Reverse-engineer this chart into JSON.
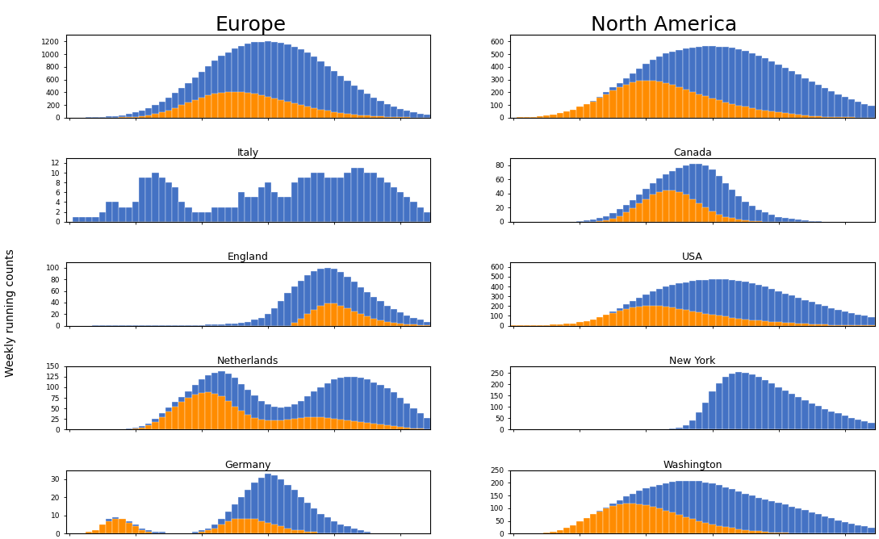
{
  "title_left": "Europe",
  "title_right": "North America",
  "ylabel": "Weekly running counts",
  "blue_color": "#4472C4",
  "orange_color": "#FF8C00",
  "panels": {
    "europe_total": {
      "title": "",
      "n_bars": 55,
      "blue": [
        2,
        3,
        4,
        6,
        8,
        12,
        18,
        28,
        42,
        60,
        85,
        115,
        155,
        200,
        255,
        320,
        390,
        465,
        545,
        630,
        720,
        810,
        895,
        970,
        1030,
        1085,
        1130,
        1165,
        1185,
        1195,
        1200,
        1195,
        1180,
        1155,
        1120,
        1075,
        1020,
        960,
        890,
        815,
        740,
        660,
        585,
        510,
        440,
        375,
        315,
        262,
        215,
        172,
        138,
        108,
        84,
        65,
        50
      ],
      "orange": [
        0,
        0,
        0,
        0,
        0,
        1,
        2,
        4,
        6,
        10,
        16,
        25,
        38,
        58,
        82,
        115,
        155,
        198,
        240,
        282,
        318,
        350,
        375,
        390,
        398,
        400,
        398,
        390,
        375,
        355,
        330,
        305,
        278,
        250,
        222,
        195,
        170,
        147,
        126,
        107,
        90,
        75,
        62,
        50,
        40,
        32,
        25,
        19,
        14,
        11,
        8,
        6,
        4,
        3,
        2
      ],
      "ylim": [
        0,
        1300
      ],
      "ytick_step": 200
    },
    "italy": {
      "title": "Italy",
      "n_bars": 55,
      "blue": [
        0,
        1,
        1,
        1,
        1,
        2,
        4,
        4,
        3,
        3,
        4,
        9,
        9,
        10,
        9,
        8,
        7,
        4,
        3,
        2,
        2,
        2,
        3,
        3,
        3,
        3,
        6,
        5,
        5,
        7,
        8,
        6,
        5,
        5,
        8,
        9,
        9,
        10,
        10,
        9,
        9,
        9,
        10,
        11,
        11,
        10,
        10,
        9,
        8,
        7,
        6,
        5,
        4,
        3,
        2
      ],
      "orange": [
        0,
        0,
        0,
        0,
        0,
        0,
        0,
        0,
        0,
        0,
        0,
        0,
        0,
        0,
        0,
        0,
        0,
        0,
        0,
        0,
        0,
        0,
        0,
        0,
        0,
        0,
        0,
        0,
        0,
        0,
        0,
        0,
        0,
        0,
        0,
        0,
        0,
        0,
        0,
        0,
        0,
        0,
        0,
        0,
        0,
        0,
        0,
        0,
        0,
        0,
        0,
        0,
        0,
        0,
        0
      ],
      "ylim": [
        0,
        13
      ],
      "ytick_step": 2
    },
    "england": {
      "title": "England",
      "n_bars": 55,
      "blue": [
        0,
        0,
        0,
        0,
        1,
        1,
        1,
        1,
        1,
        1,
        1,
        1,
        1,
        1,
        1,
        1,
        1,
        1,
        1,
        1,
        1,
        2,
        2,
        2,
        3,
        4,
        5,
        7,
        10,
        14,
        20,
        30,
        42,
        56,
        68,
        78,
        87,
        94,
        98,
        100,
        98,
        93,
        85,
        76,
        67,
        58,
        50,
        42,
        35,
        29,
        23,
        18,
        14,
        10,
        7
      ],
      "orange": [
        0,
        0,
        0,
        0,
        0,
        0,
        0,
        0,
        0,
        0,
        0,
        0,
        0,
        0,
        0,
        0,
        0,
        0,
        0,
        0,
        0,
        0,
        0,
        0,
        0,
        0,
        0,
        0,
        0,
        0,
        0,
        0,
        0,
        0,
        5,
        12,
        20,
        28,
        34,
        38,
        38,
        35,
        30,
        25,
        20,
        16,
        12,
        9,
        7,
        5,
        3,
        2,
        2,
        1,
        1
      ],
      "ylim": [
        0,
        110
      ],
      "ytick_step": 20
    },
    "netherlands": {
      "title": "Netherlands",
      "n_bars": 55,
      "blue": [
        0,
        0,
        0,
        0,
        0,
        0,
        0,
        0,
        1,
        2,
        4,
        8,
        15,
        25,
        38,
        52,
        65,
        77,
        90,
        105,
        118,
        128,
        135,
        138,
        132,
        122,
        108,
        95,
        80,
        68,
        60,
        55,
        52,
        55,
        60,
        68,
        78,
        90,
        100,
        110,
        118,
        122,
        125,
        125,
        122,
        118,
        112,
        105,
        98,
        88,
        75,
        62,
        50,
        38,
        28
      ],
      "orange": [
        0,
        0,
        0,
        0,
        0,
        0,
        0,
        0,
        0,
        1,
        2,
        5,
        10,
        18,
        30,
        42,
        55,
        65,
        75,
        82,
        86,
        88,
        85,
        78,
        68,
        55,
        44,
        35,
        28,
        24,
        22,
        22,
        22,
        24,
        26,
        28,
        30,
        30,
        30,
        28,
        26,
        24,
        22,
        20,
        18,
        16,
        14,
        12,
        10,
        8,
        6,
        4,
        3,
        2,
        1
      ],
      "ylim": [
        0,
        150
      ],
      "ytick_step": 25
    },
    "germany": {
      "title": "Germany",
      "n_bars": 55,
      "blue": [
        0,
        0,
        0,
        1,
        2,
        5,
        8,
        9,
        8,
        7,
        5,
        3,
        2,
        1,
        1,
        0,
        0,
        0,
        0,
        1,
        2,
        3,
        5,
        8,
        12,
        16,
        20,
        24,
        28,
        31,
        33,
        32,
        30,
        27,
        24,
        20,
        17,
        14,
        11,
        9,
        7,
        5,
        4,
        3,
        2,
        1,
        0,
        0,
        0,
        0,
        0,
        0,
        0,
        0,
        0
      ],
      "orange": [
        0,
        0,
        0,
        1,
        2,
        5,
        7,
        8,
        8,
        6,
        4,
        2,
        1,
        0,
        0,
        0,
        0,
        0,
        0,
        0,
        1,
        2,
        3,
        5,
        7,
        8,
        8,
        8,
        8,
        7,
        6,
        5,
        4,
        3,
        2,
        2,
        1,
        1,
        0,
        0,
        0,
        0,
        0,
        0,
        0,
        0,
        0,
        0,
        0,
        0,
        0,
        0,
        0,
        0,
        0
      ],
      "ylim": [
        0,
        35
      ],
      "ytick_step": 10
    },
    "na_total": {
      "title": "",
      "n_bars": 55,
      "blue": [
        2,
        3,
        5,
        8,
        12,
        18,
        25,
        35,
        48,
        65,
        85,
        108,
        135,
        165,
        200,
        238,
        275,
        312,
        350,
        388,
        422,
        455,
        482,
        505,
        522,
        535,
        545,
        552,
        558,
        561,
        562,
        560,
        556,
        548,
        538,
        524,
        508,
        490,
        468,
        445,
        420,
        394,
        368,
        340,
        312,
        284,
        258,
        232,
        208,
        185,
        163,
        143,
        124,
        107,
        92
      ],
      "orange": [
        2,
        3,
        5,
        8,
        12,
        18,
        25,
        35,
        48,
        65,
        85,
        105,
        128,
        155,
        185,
        215,
        242,
        262,
        278,
        288,
        292,
        290,
        282,
        270,
        256,
        240,
        222,
        204,
        186,
        168,
        152,
        136,
        122,
        108,
        96,
        85,
        75,
        65,
        56,
        48,
        41,
        34,
        28,
        23,
        18,
        14,
        11,
        8,
        6,
        5,
        4,
        3,
        2,
        1,
        1
      ],
      "ylim": [
        0,
        650
      ],
      "ytick_step": 100
    },
    "canada": {
      "title": "Canada",
      "n_bars": 55,
      "blue": [
        0,
        0,
        0,
        0,
        0,
        0,
        0,
        0,
        0,
        0,
        1,
        2,
        3,
        5,
        8,
        12,
        18,
        24,
        30,
        38,
        46,
        54,
        61,
        67,
        72,
        76,
        80,
        82,
        82,
        80,
        74,
        65,
        55,
        45,
        36,
        28,
        22,
        17,
        13,
        10,
        7,
        5,
        4,
        3,
        2,
        1,
        1,
        0,
        0,
        0,
        0,
        0,
        0,
        0,
        0
      ],
      "orange": [
        0,
        0,
        0,
        0,
        0,
        0,
        0,
        0,
        0,
        0,
        0,
        0,
        0,
        1,
        2,
        4,
        8,
        13,
        19,
        26,
        32,
        38,
        42,
        44,
        44,
        42,
        38,
        32,
        26,
        20,
        15,
        10,
        7,
        5,
        3,
        2,
        1,
        1,
        0,
        0,
        0,
        0,
        0,
        0,
        0,
        0,
        0,
        0,
        0,
        0,
        0,
        0,
        0,
        0,
        0
      ],
      "ylim": [
        0,
        90
      ],
      "ytick_step": 20
    },
    "usa": {
      "title": "USA",
      "n_bars": 55,
      "blue": [
        1,
        1,
        2,
        3,
        4,
        6,
        9,
        13,
        18,
        25,
        35,
        48,
        65,
        88,
        115,
        148,
        182,
        216,
        252,
        286,
        318,
        348,
        374,
        397,
        416,
        432,
        445,
        456,
        464,
        470,
        474,
        476,
        474,
        470,
        462,
        450,
        436,
        418,
        398,
        376,
        353,
        330,
        307,
        284,
        262,
        240,
        219,
        200,
        181,
        163,
        146,
        130,
        115,
        101,
        88
      ],
      "orange": [
        1,
        1,
        2,
        3,
        4,
        6,
        9,
        13,
        18,
        25,
        35,
        48,
        65,
        85,
        108,
        132,
        155,
        172,
        186,
        196,
        202,
        204,
        200,
        193,
        183,
        172,
        160,
        148,
        136,
        124,
        113,
        102,
        92,
        83,
        74,
        66,
        58,
        52,
        46,
        40,
        35,
        30,
        26,
        22,
        18,
        15,
        12,
        10,
        8,
        6,
        5,
        4,
        3,
        2,
        2
      ],
      "ylim": [
        0,
        650
      ],
      "ytick_step": 100
    },
    "new_york": {
      "title": "New York",
      "n_bars": 55,
      "blue": [
        0,
        0,
        0,
        0,
        0,
        0,
        0,
        0,
        0,
        0,
        0,
        0,
        0,
        0,
        0,
        0,
        0,
        0,
        0,
        0,
        0,
        0,
        1,
        2,
        5,
        10,
        20,
        40,
        75,
        120,
        168,
        205,
        232,
        248,
        254,
        252,
        244,
        232,
        218,
        203,
        188,
        173,
        158,
        144,
        130,
        117,
        104,
        92,
        81,
        71,
        61,
        52,
        44,
        37,
        30
      ],
      "orange": [
        0,
        0,
        0,
        0,
        0,
        0,
        0,
        0,
        0,
        0,
        0,
        0,
        0,
        0,
        0,
        0,
        0,
        0,
        0,
        0,
        0,
        0,
        0,
        0,
        0,
        0,
        0,
        0,
        0,
        0,
        0,
        0,
        0,
        1,
        2,
        3,
        3,
        3,
        2,
        2,
        1,
        1,
        1,
        0,
        0,
        0,
        0,
        0,
        0,
        0,
        0,
        0,
        0,
        0,
        0
      ],
      "ylim": [
        0,
        280
      ],
      "ytick_step": 50
    },
    "washington": {
      "title": "Washington",
      "n_bars": 55,
      "blue": [
        0,
        0,
        0,
        0,
        2,
        4,
        8,
        14,
        22,
        34,
        48,
        62,
        76,
        90,
        104,
        118,
        132,
        146,
        158,
        168,
        178,
        186,
        193,
        199,
        203,
        206,
        208,
        208,
        206,
        202,
        197,
        190,
        183,
        175,
        166,
        158,
        150,
        142,
        135,
        128,
        121,
        114,
        107,
        100,
        92,
        84,
        76,
        68,
        60,
        53,
        46,
        40,
        34,
        28,
        23
      ],
      "orange": [
        0,
        0,
        0,
        0,
        2,
        4,
        8,
        14,
        22,
        34,
        48,
        62,
        76,
        88,
        98,
        108,
        115,
        118,
        118,
        116,
        112,
        106,
        98,
        90,
        82,
        74,
        65,
        57,
        50,
        43,
        37,
        31,
        26,
        22,
        18,
        15,
        12,
        9,
        7,
        5,
        4,
        3,
        2,
        1,
        1,
        0,
        0,
        0,
        0,
        0,
        0,
        0,
        0,
        0,
        0
      ],
      "ylim": [
        0,
        250
      ],
      "ytick_step": 50
    }
  }
}
